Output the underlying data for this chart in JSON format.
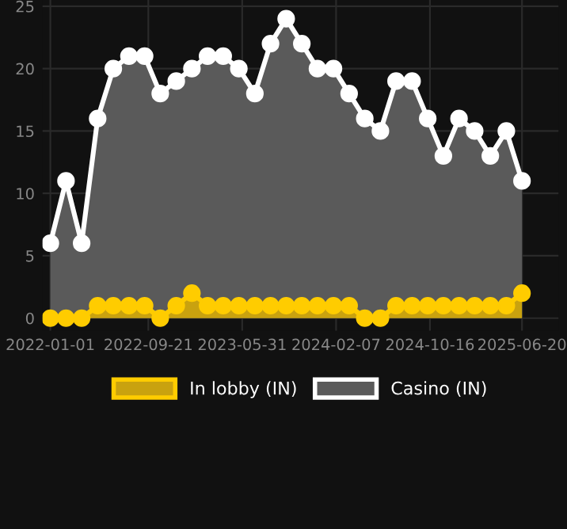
{
  "chart_data": {
    "type": "area",
    "x": [
      "2022-01-01",
      "2022-02-12",
      "2022-03-26",
      "2022-05-08",
      "2022-06-19",
      "2022-07-31",
      "2022-09-11",
      "2022-10-23",
      "2022-12-05",
      "2023-01-16",
      "2023-02-27",
      "2023-04-10",
      "2023-05-22",
      "2023-07-04",
      "2023-08-15",
      "2023-09-26",
      "2023-11-07",
      "2023-12-19",
      "2024-01-31",
      "2024-03-13",
      "2024-04-24",
      "2024-06-05",
      "2024-07-17",
      "2024-08-29",
      "2024-10-10",
      "2024-11-21",
      "2025-01-02",
      "2025-02-13",
      "2025-03-27",
      "2025-05-09",
      "2025-06-20"
    ],
    "series": [
      {
        "name": "In lobby (IN)",
        "color": "#ffcc00",
        "values": [
          0,
          0,
          0,
          1,
          1,
          1,
          1,
          0,
          1,
          2,
          1,
          1,
          1,
          1,
          1,
          1,
          1,
          1,
          1,
          1,
          0,
          0,
          1,
          1,
          1,
          1,
          1,
          1,
          1,
          1,
          2
        ]
      },
      {
        "name": "Casino (IN)",
        "color": "#ffffff",
        "values": [
          6,
          11,
          6,
          16,
          20,
          21,
          21,
          18,
          19,
          20,
          21,
          21,
          20,
          18,
          22,
          24,
          22,
          20,
          20,
          18,
          16,
          15,
          19,
          19,
          16,
          13,
          16,
          15,
          13,
          15,
          11
        ]
      }
    ],
    "xlim": [
      "2021-12-11",
      "2025-09-26"
    ],
    "xticks": [
      {
        "value": "2022-01-01",
        "label": "2022-01-01"
      },
      {
        "value": "2022-09-21",
        "label": "2022-09-21"
      },
      {
        "value": "2023-05-31",
        "label": "2023-05-31"
      },
      {
        "value": "2024-02-07",
        "label": "2024-02-07"
      },
      {
        "value": "2024-10-16",
        "label": "2024-10-16"
      },
      {
        "value": "2025-06-20",
        "label": "2025-06-20"
      }
    ],
    "ylim": [
      -1,
      25.5
    ],
    "yticks": [
      0,
      5,
      10,
      15,
      20,
      25
    ],
    "grid": true,
    "legend": "bottom",
    "marker": "circle",
    "line_style": "solid"
  }
}
